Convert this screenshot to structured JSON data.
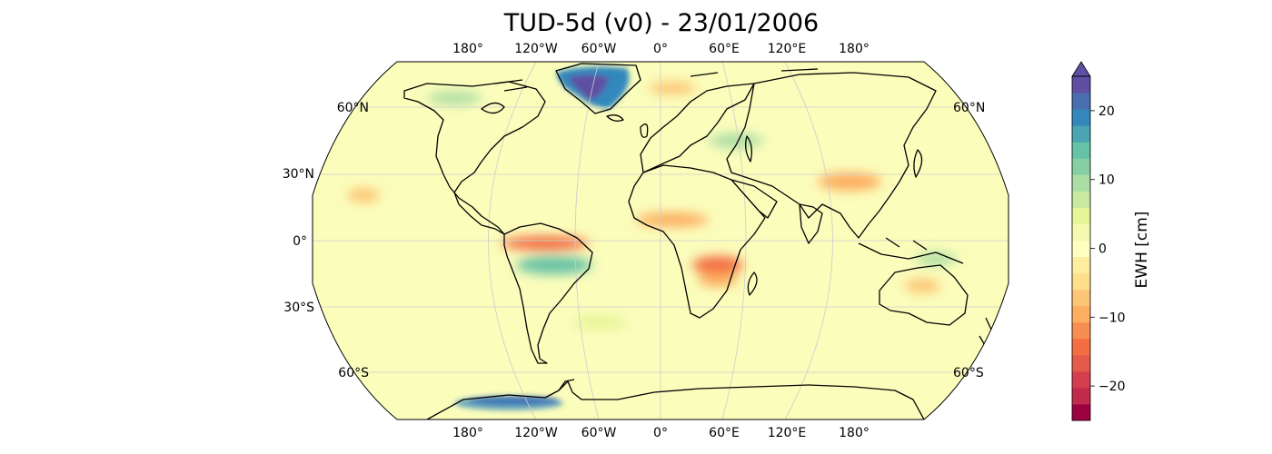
{
  "title": "TUD-5d (v0) - 23/01/2006",
  "map": {
    "projection": "Robinson",
    "ocean_color": "#fbfdbb",
    "coast_color": "#000000",
    "grid_color": "#cccccc",
    "top_lon_labels": [
      "180°",
      "120°W",
      "60°W",
      "0°",
      "60°E",
      "120°E",
      "180°"
    ],
    "bottom_lon_labels": [
      "180°",
      "120°W",
      "60°W",
      "0°",
      "60°E",
      "120°E",
      "180°"
    ],
    "left_lat_labels": [
      "60°N",
      "30°N",
      "0°",
      "30°S",
      "60°S"
    ],
    "right_lat_labels": [
      "60°N",
      "60°S"
    ]
  },
  "colorbar": {
    "label": "EWH [cm]",
    "vmin": -25,
    "vmax": 25,
    "ticks": [
      {
        "value": 20,
        "label": "20"
      },
      {
        "value": 10,
        "label": "10"
      },
      {
        "value": 0,
        "label": "0"
      },
      {
        "value": -10,
        "label": "−10"
      },
      {
        "value": -20,
        "label": "−20"
      }
    ],
    "colors": [
      "#9e0142",
      "#c02a4b",
      "#d53e4f",
      "#e55a4a",
      "#f46d43",
      "#f88d52",
      "#fdae61",
      "#fdc676",
      "#fee08b",
      "#feed9e",
      "#ffffbf",
      "#f3faaf",
      "#e6f598",
      "#c7e9a0",
      "#abdda4",
      "#86cfa5",
      "#66c2a5",
      "#4aa4b2",
      "#3288bd",
      "#4a6fb0",
      "#5e4fa2"
    ],
    "extend": "max"
  }
}
